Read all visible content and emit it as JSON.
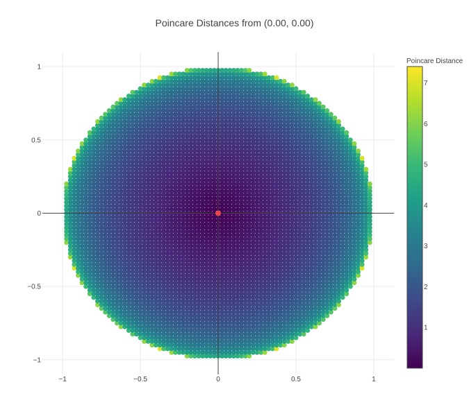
{
  "chart_data": {
    "type": "heatmap",
    "title": "Poincare Distances from (0.00, 0.00)",
    "xlabel": "",
    "ylabel": "",
    "xlim": [
      -1.13,
      1.13
    ],
    "ylim": [
      -1.1,
      1.1
    ],
    "xticks": [
      -1,
      -0.5,
      0,
      0.5,
      1
    ],
    "xtick_labels": [
      "−1",
      "−0.5",
      "0",
      "0.5",
      "1"
    ],
    "yticks": [
      -1,
      -0.5,
      0,
      0.5,
      1
    ],
    "ytick_labels": [
      "−1",
      "−0.5",
      "0",
      "0.5",
      "1"
    ],
    "grid": true,
    "zero_lines": true,
    "domain": "unit disk, radius 1",
    "grid_step": 0.025,
    "value_formula": "2 * atanh(sqrt(x^2 + y^2))",
    "reference_point": {
      "x": 0.0,
      "y": 0.0,
      "color": "#e5484d"
    },
    "colorscale": "Viridis",
    "colorscale_stops": [
      "#440154",
      "#482878",
      "#3e4989",
      "#31688e",
      "#26828e",
      "#1f9e89",
      "#35b779",
      "#6ece58",
      "#b5de2b",
      "#fde725"
    ],
    "colorbar": {
      "title": "Poincare Distance",
      "range": [
        0,
        7.4
      ],
      "ticks": [
        1,
        2,
        3,
        4,
        5,
        6,
        7
      ],
      "tick_labels": [
        "1",
        "2",
        "3",
        "4",
        "5",
        "6",
        "7"
      ]
    }
  }
}
